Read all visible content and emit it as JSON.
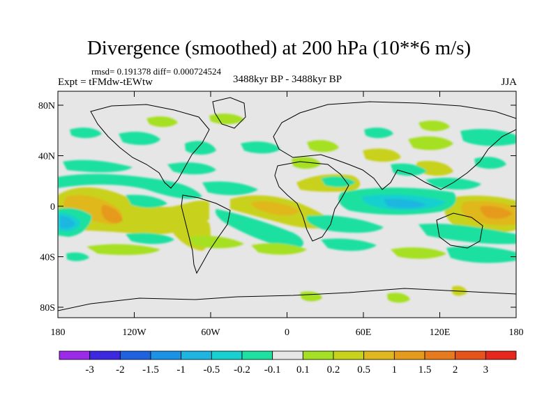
{
  "title": "Divergence (smoothed) at 200 hPa (10**6 m/s)",
  "stats": "rmsd= 0.191378 diff= 0.000724524",
  "experiment": "Expt = tFMdw-tEWtw",
  "period": "3488kyr BP - 3488kyr BP",
  "season": "JJA",
  "lat_ticks": [
    "80N",
    "40N",
    "0",
    "40S",
    "80S"
  ],
  "lon_ticks": [
    "180",
    "120W",
    "60W",
    "0",
    "60E",
    "120E",
    "180"
  ],
  "colorbar": {
    "colors": [
      "#9b2be8",
      "#3b28e0",
      "#1e62e0",
      "#1c92e6",
      "#1eb6e0",
      "#18d0cf",
      "#1ee0a0",
      "#e6e6e6",
      "#a6e024",
      "#c8d21a",
      "#e0b81e",
      "#e69a1c",
      "#e67a1c",
      "#e6541c",
      "#e6281c"
    ],
    "labels": [
      "-3",
      "-2",
      "-1.5",
      "-1",
      "-0.5",
      "-0.2",
      "-0.1",
      "0.1",
      "0.2",
      "0.5",
      "1",
      "1.5",
      "2",
      "3"
    ]
  }
}
